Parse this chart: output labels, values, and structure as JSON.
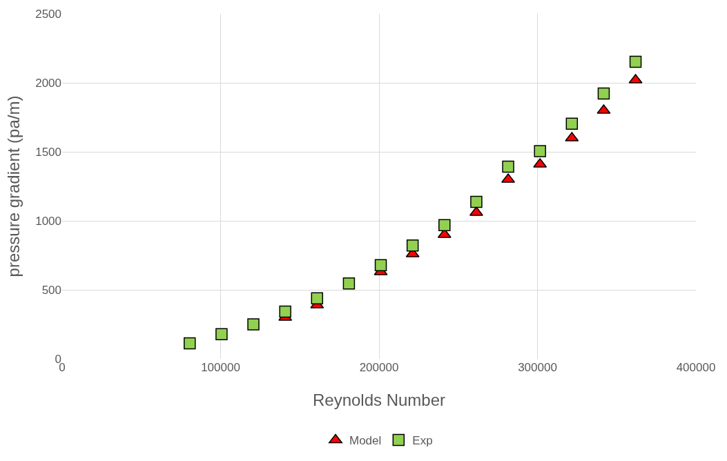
{
  "chart_data": {
    "type": "scatter",
    "xlabel": "Reynolds Number",
    "ylabel": "pressure gradient (pa/m)",
    "x": [
      80500,
      100600,
      120700,
      140800,
      160900,
      181000,
      201100,
      221200,
      241300,
      261400,
      281500,
      301600,
      321700,
      341800,
      361900
    ],
    "series": [
      {
        "name": "Model",
        "color": "#ff0000",
        "marker": "triangle",
        "values": [
          null,
          null,
          null,
          300,
          390,
          null,
          630,
          760,
          900,
          1060,
          1300,
          1410,
          1600,
          1800,
          2020
        ]
      },
      {
        "name": "Exp",
        "color": "#92d050",
        "marker": "square",
        "values": [
          112,
          179,
          250,
          342,
          439,
          546,
          679,
          821,
          969,
          1138,
          1393,
          1505,
          1704,
          1923,
          2153
        ]
      }
    ],
    "xlim": [
      0,
      400000
    ],
    "xticks": [
      0,
      100000,
      200000,
      300000,
      400000
    ],
    "ylim": [
      0,
      2500
    ],
    "yticks": [
      0,
      500,
      1000,
      1500,
      2000,
      2500
    ],
    "grid": true,
    "legend": "bottom"
  }
}
